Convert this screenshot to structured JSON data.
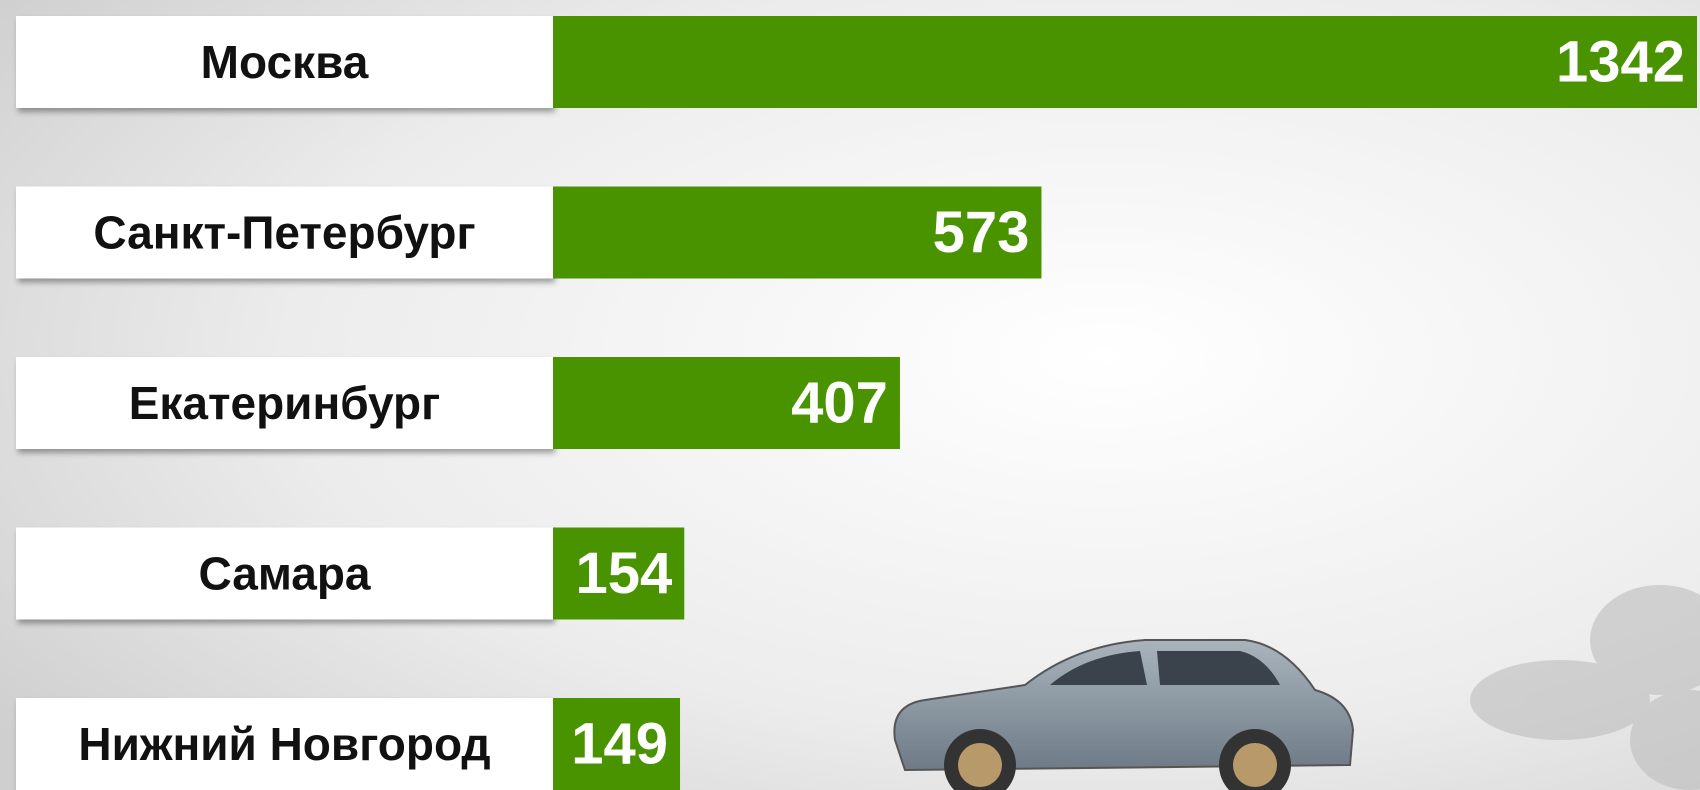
{
  "chart_data": {
    "type": "bar",
    "categories": [
      "Москва",
      "Санкт-Петербург",
      "Екатеринбург",
      "Самара",
      "Нижний Новгород"
    ],
    "values": [
      1342,
      573,
      407,
      154,
      149
    ],
    "color": "#4a9300"
  }
}
